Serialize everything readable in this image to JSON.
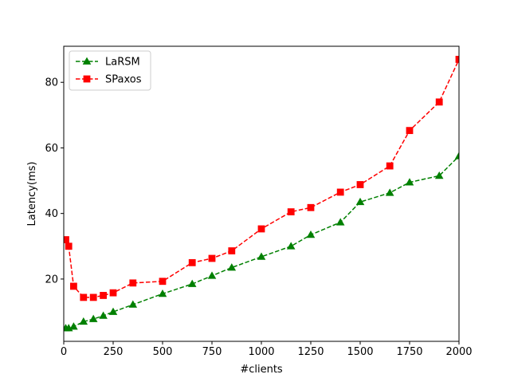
{
  "chart_data": {
    "type": "line",
    "title": "",
    "xlabel": "#clients",
    "ylabel": "Latency(ms)",
    "xlim": [
      0,
      2000
    ],
    "ylim": [
      1,
      91
    ],
    "xticks": [
      0,
      250,
      500,
      750,
      1000,
      1250,
      1500,
      1750,
      2000
    ],
    "yticks": [
      20,
      40,
      60,
      80
    ],
    "grid": false,
    "legend_position": "top-left",
    "series": [
      {
        "name": "LaRSM",
        "color": "#008000",
        "marker": "triangle",
        "linestyle": "dashed",
        "x": [
          10,
          25,
          50,
          100,
          150,
          200,
          250,
          350,
          500,
          650,
          750,
          850,
          1000,
          1150,
          1250,
          1400,
          1500,
          1650,
          1750,
          1900,
          2000
        ],
        "y": [
          5.0,
          5.0,
          5.5,
          7.0,
          7.8,
          8.8,
          10.0,
          12.2,
          15.5,
          18.5,
          21.0,
          23.5,
          26.8,
          30.0,
          33.5,
          37.3,
          43.5,
          46.3,
          49.5,
          51.5,
          57.5
        ]
      },
      {
        "name": "SPaxos",
        "color": "#ff0000",
        "marker": "square",
        "linestyle": "dashed",
        "x": [
          10,
          25,
          50,
          100,
          150,
          200,
          250,
          350,
          500,
          650,
          750,
          850,
          1000,
          1150,
          1250,
          1400,
          1500,
          1650,
          1750,
          1900,
          2000
        ],
        "y": [
          32.0,
          30.0,
          17.8,
          14.4,
          14.4,
          15.0,
          15.8,
          18.8,
          19.3,
          25.0,
          26.3,
          28.6,
          35.3,
          40.5,
          41.8,
          46.5,
          48.8,
          54.5,
          65.3,
          74.0,
          87.0
        ]
      }
    ]
  }
}
